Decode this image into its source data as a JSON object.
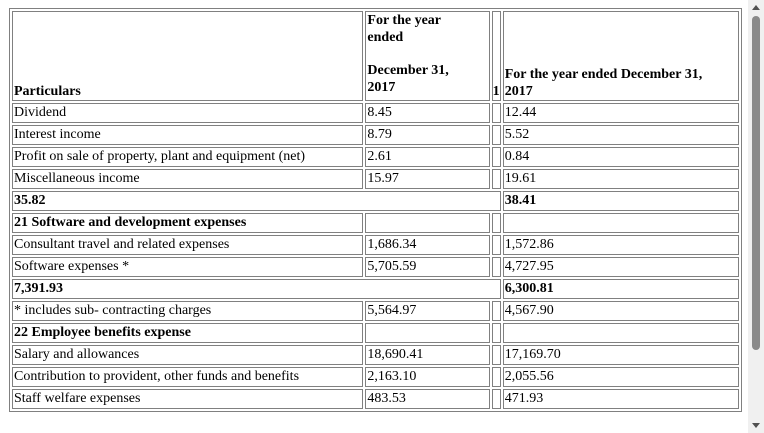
{
  "header": {
    "particulars": "Particulars",
    "year1_line1": "For the year",
    "year1_line2": "ended",
    "year1_line3": "December 31,",
    "year1_line4": "2017",
    "sep": "1",
    "year2_line1": "For the year ended December 31,",
    "year2_line2": "2017"
  },
  "rows": [
    {
      "label": "Dividend",
      "v1": "8.45",
      "v2": "12.44"
    },
    {
      "label": "Interest income",
      "v1": "8.79",
      "v2": "5.52"
    },
    {
      "label": "Profit on sale of property, plant and equipment (net)",
      "v1": "2.61",
      "v2": "0.84"
    },
    {
      "label": "Miscellaneous income",
      "v1": "15.97",
      "v2": "19.61"
    },
    {
      "total1": "35.82",
      "total2": "38.41"
    },
    {
      "section": "21 Software and development expenses"
    },
    {
      "label": "Consultant travel and related expenses",
      "v1": "1,686.34",
      "v2": "1,572.86"
    },
    {
      "label": "Software expenses *",
      "v1": "5,705.59",
      "v2": "4,727.95"
    },
    {
      "total1": "7,391.93",
      "total2": "6,300.81"
    },
    {
      "label": "* includes sub- contracting charges",
      "v1": "5,564.97",
      "v2": "4,567.90"
    },
    {
      "section": "22 Employee benefits expense"
    },
    {
      "label": "Salary and allowances",
      "v1": "18,690.41",
      "v2": "17,169.70"
    },
    {
      "label": "Contribution to provident, other funds and benefits",
      "v1": "2,163.10",
      "v2": "2,055.56"
    },
    {
      "label": "Staff welfare expenses",
      "v1": "483.53",
      "v2": "471.93"
    }
  ]
}
